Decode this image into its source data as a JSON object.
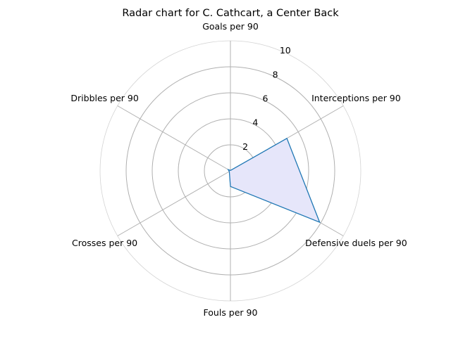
{
  "chart_data": {
    "type": "radar",
    "title": "Radar chart for C. Cathcart, a Center Back",
    "categories": [
      "Goals per 90",
      "Interceptions per 90",
      "Defensive duels per 90",
      "Fouls per 90",
      "Crosses per 90",
      "Dribbles per 90"
    ],
    "values": [
      0.03,
      5.0,
      7.9,
      1.2,
      0.1,
      0.2
    ],
    "rlim": [
      0,
      10
    ],
    "rticks": [
      "2",
      "4",
      "6",
      "8",
      "10"
    ],
    "grid": true,
    "colors": {
      "line": "#1f77b4",
      "fill": "#e6e6fa",
      "grid": "#b0b0b0"
    }
  }
}
